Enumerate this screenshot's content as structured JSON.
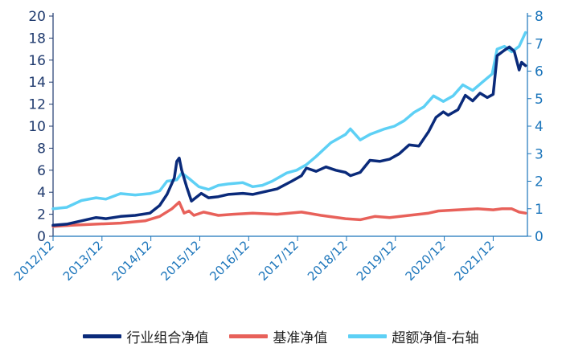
{
  "chart_data": {
    "type": "line",
    "x_tick_labels": [
      "2012/12",
      "2013/12",
      "2014/12",
      "2015/12",
      "2016/12",
      "2017/12",
      "2018/12",
      "2019/12",
      "2020/12",
      "2021/12"
    ],
    "y_left": {
      "range": [
        0,
        20
      ],
      "ticks": [
        0,
        2,
        4,
        6,
        8,
        10,
        12,
        14,
        16,
        18,
        20
      ]
    },
    "y_right": {
      "range": [
        0,
        8
      ],
      "ticks": [
        0,
        1,
        2,
        3,
        4,
        5,
        6,
        7,
        8
      ]
    },
    "grid": false,
    "legend_position": "bottom",
    "series": [
      {
        "name": "行业组合净值",
        "axis": "left",
        "color": "#0a2a7a",
        "points": [
          [
            2012.92,
            1.0
          ],
          [
            2013.2,
            1.1
          ],
          [
            2013.5,
            1.4
          ],
          [
            2013.8,
            1.7
          ],
          [
            2014.0,
            1.6
          ],
          [
            2014.3,
            1.8
          ],
          [
            2014.6,
            1.9
          ],
          [
            2014.9,
            2.1
          ],
          [
            2015.1,
            2.8
          ],
          [
            2015.25,
            3.8
          ],
          [
            2015.4,
            5.3
          ],
          [
            2015.45,
            6.8
          ],
          [
            2015.5,
            7.1
          ],
          [
            2015.55,
            6.0
          ],
          [
            2015.65,
            4.5
          ],
          [
            2015.75,
            3.2
          ],
          [
            2015.95,
            3.9
          ],
          [
            2016.1,
            3.5
          ],
          [
            2016.3,
            3.6
          ],
          [
            2016.5,
            3.8
          ],
          [
            2016.8,
            3.9
          ],
          [
            2017.0,
            3.8
          ],
          [
            2017.2,
            4.0
          ],
          [
            2017.5,
            4.3
          ],
          [
            2017.8,
            5.0
          ],
          [
            2018.0,
            5.5
          ],
          [
            2018.1,
            6.2
          ],
          [
            2018.3,
            5.9
          ],
          [
            2018.5,
            6.3
          ],
          [
            2018.7,
            6.0
          ],
          [
            2018.9,
            5.8
          ],
          [
            2019.0,
            5.5
          ],
          [
            2019.2,
            5.8
          ],
          [
            2019.4,
            6.9
          ],
          [
            2019.6,
            6.8
          ],
          [
            2019.8,
            7.0
          ],
          [
            2020.0,
            7.5
          ],
          [
            2020.2,
            8.3
          ],
          [
            2020.4,
            8.2
          ],
          [
            2020.6,
            9.5
          ],
          [
            2020.75,
            10.8
          ],
          [
            2020.9,
            11.3
          ],
          [
            2021.0,
            11.0
          ],
          [
            2021.2,
            11.5
          ],
          [
            2021.35,
            12.8
          ],
          [
            2021.5,
            12.3
          ],
          [
            2021.65,
            13.0
          ],
          [
            2021.8,
            12.6
          ],
          [
            2021.92,
            12.9
          ],
          [
            2022.0,
            16.4
          ],
          [
            2022.15,
            16.9
          ],
          [
            2022.25,
            17.2
          ],
          [
            2022.35,
            16.8
          ],
          [
            2022.45,
            15.1
          ],
          [
            2022.5,
            15.8
          ],
          [
            2022.58,
            15.5
          ]
        ]
      },
      {
        "name": "基准净值",
        "axis": "left",
        "color": "#e8615a",
        "points": [
          [
            2012.92,
            0.9
          ],
          [
            2013.3,
            1.0
          ],
          [
            2013.8,
            1.1
          ],
          [
            2014.3,
            1.2
          ],
          [
            2014.8,
            1.4
          ],
          [
            2015.1,
            1.8
          ],
          [
            2015.35,
            2.5
          ],
          [
            2015.5,
            3.1
          ],
          [
            2015.6,
            2.1
          ],
          [
            2015.7,
            2.3
          ],
          [
            2015.8,
            1.9
          ],
          [
            2016.0,
            2.2
          ],
          [
            2016.3,
            1.9
          ],
          [
            2016.6,
            2.0
          ],
          [
            2017.0,
            2.1
          ],
          [
            2017.5,
            2.0
          ],
          [
            2018.0,
            2.2
          ],
          [
            2018.4,
            1.9
          ],
          [
            2018.9,
            1.6
          ],
          [
            2019.2,
            1.5
          ],
          [
            2019.5,
            1.8
          ],
          [
            2019.8,
            1.7
          ],
          [
            2020.2,
            1.9
          ],
          [
            2020.6,
            2.1
          ],
          [
            2020.8,
            2.3
          ],
          [
            2021.2,
            2.4
          ],
          [
            2021.6,
            2.5
          ],
          [
            2021.92,
            2.4
          ],
          [
            2022.1,
            2.5
          ],
          [
            2022.3,
            2.5
          ],
          [
            2022.45,
            2.2
          ],
          [
            2022.58,
            2.1
          ]
        ]
      },
      {
        "name": "超额净值-右轴",
        "axis": "right",
        "color": "#5dd0f5",
        "points": [
          [
            2012.92,
            1.0
          ],
          [
            2013.2,
            1.05
          ],
          [
            2013.5,
            1.3
          ],
          [
            2013.8,
            1.4
          ],
          [
            2014.0,
            1.35
          ],
          [
            2014.3,
            1.55
          ],
          [
            2014.6,
            1.5
          ],
          [
            2014.9,
            1.55
          ],
          [
            2015.1,
            1.65
          ],
          [
            2015.25,
            2.0
          ],
          [
            2015.45,
            2.05
          ],
          [
            2015.55,
            2.3
          ],
          [
            2015.7,
            2.1
          ],
          [
            2015.9,
            1.8
          ],
          [
            2016.1,
            1.7
          ],
          [
            2016.3,
            1.85
          ],
          [
            2016.5,
            1.9
          ],
          [
            2016.8,
            1.95
          ],
          [
            2017.0,
            1.8
          ],
          [
            2017.2,
            1.85
          ],
          [
            2017.4,
            2.0
          ],
          [
            2017.7,
            2.3
          ],
          [
            2017.9,
            2.4
          ],
          [
            2018.1,
            2.6
          ],
          [
            2018.3,
            2.9
          ],
          [
            2018.6,
            3.4
          ],
          [
            2018.9,
            3.7
          ],
          [
            2019.0,
            3.9
          ],
          [
            2019.2,
            3.5
          ],
          [
            2019.4,
            3.7
          ],
          [
            2019.7,
            3.9
          ],
          [
            2019.9,
            4.0
          ],
          [
            2020.1,
            4.2
          ],
          [
            2020.3,
            4.5
          ],
          [
            2020.5,
            4.7
          ],
          [
            2020.7,
            5.1
          ],
          [
            2020.9,
            4.9
          ],
          [
            2021.1,
            5.1
          ],
          [
            2021.3,
            5.5
          ],
          [
            2021.5,
            5.3
          ],
          [
            2021.7,
            5.6
          ],
          [
            2021.9,
            5.9
          ],
          [
            2022.0,
            6.8
          ],
          [
            2022.15,
            6.9
          ],
          [
            2022.3,
            6.7
          ],
          [
            2022.45,
            6.9
          ],
          [
            2022.58,
            7.4
          ]
        ]
      }
    ]
  }
}
